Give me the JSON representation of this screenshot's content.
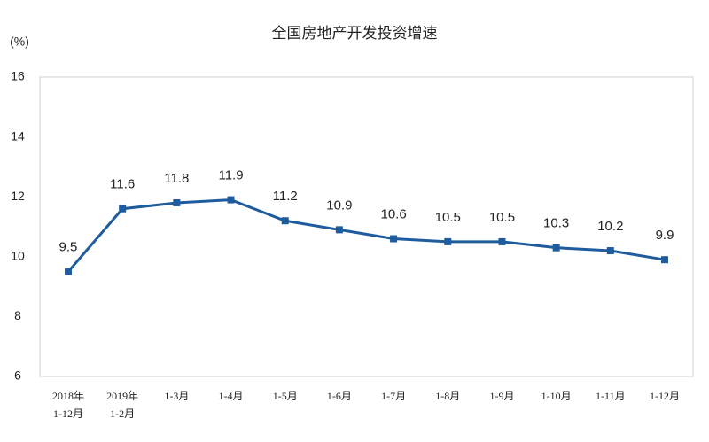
{
  "chart_data": {
    "type": "line",
    "title": "全国房地产开发投资增速",
    "y_label": "(%)",
    "categories": [
      [
        "2018年",
        "1-12月"
      ],
      [
        "2019年",
        "1-2月"
      ],
      "1-3月",
      "1-4月",
      "1-5月",
      "1-6月",
      "1-7月",
      "1-8月",
      "1-9月",
      "1-10月",
      "1-11月",
      "1-12月"
    ],
    "series": [
      {
        "name": "全国房地产开发投资增速",
        "color": "#1f5c9e",
        "values": [
          9.5,
          11.6,
          11.8,
          11.9,
          11.2,
          10.9,
          10.6,
          10.5,
          10.5,
          10.3,
          10.2,
          9.9
        ]
      }
    ],
    "ylim": [
      6,
      16
    ],
    "yticks": [
      6,
      8,
      10,
      12,
      14,
      16
    ],
    "grid": false
  }
}
